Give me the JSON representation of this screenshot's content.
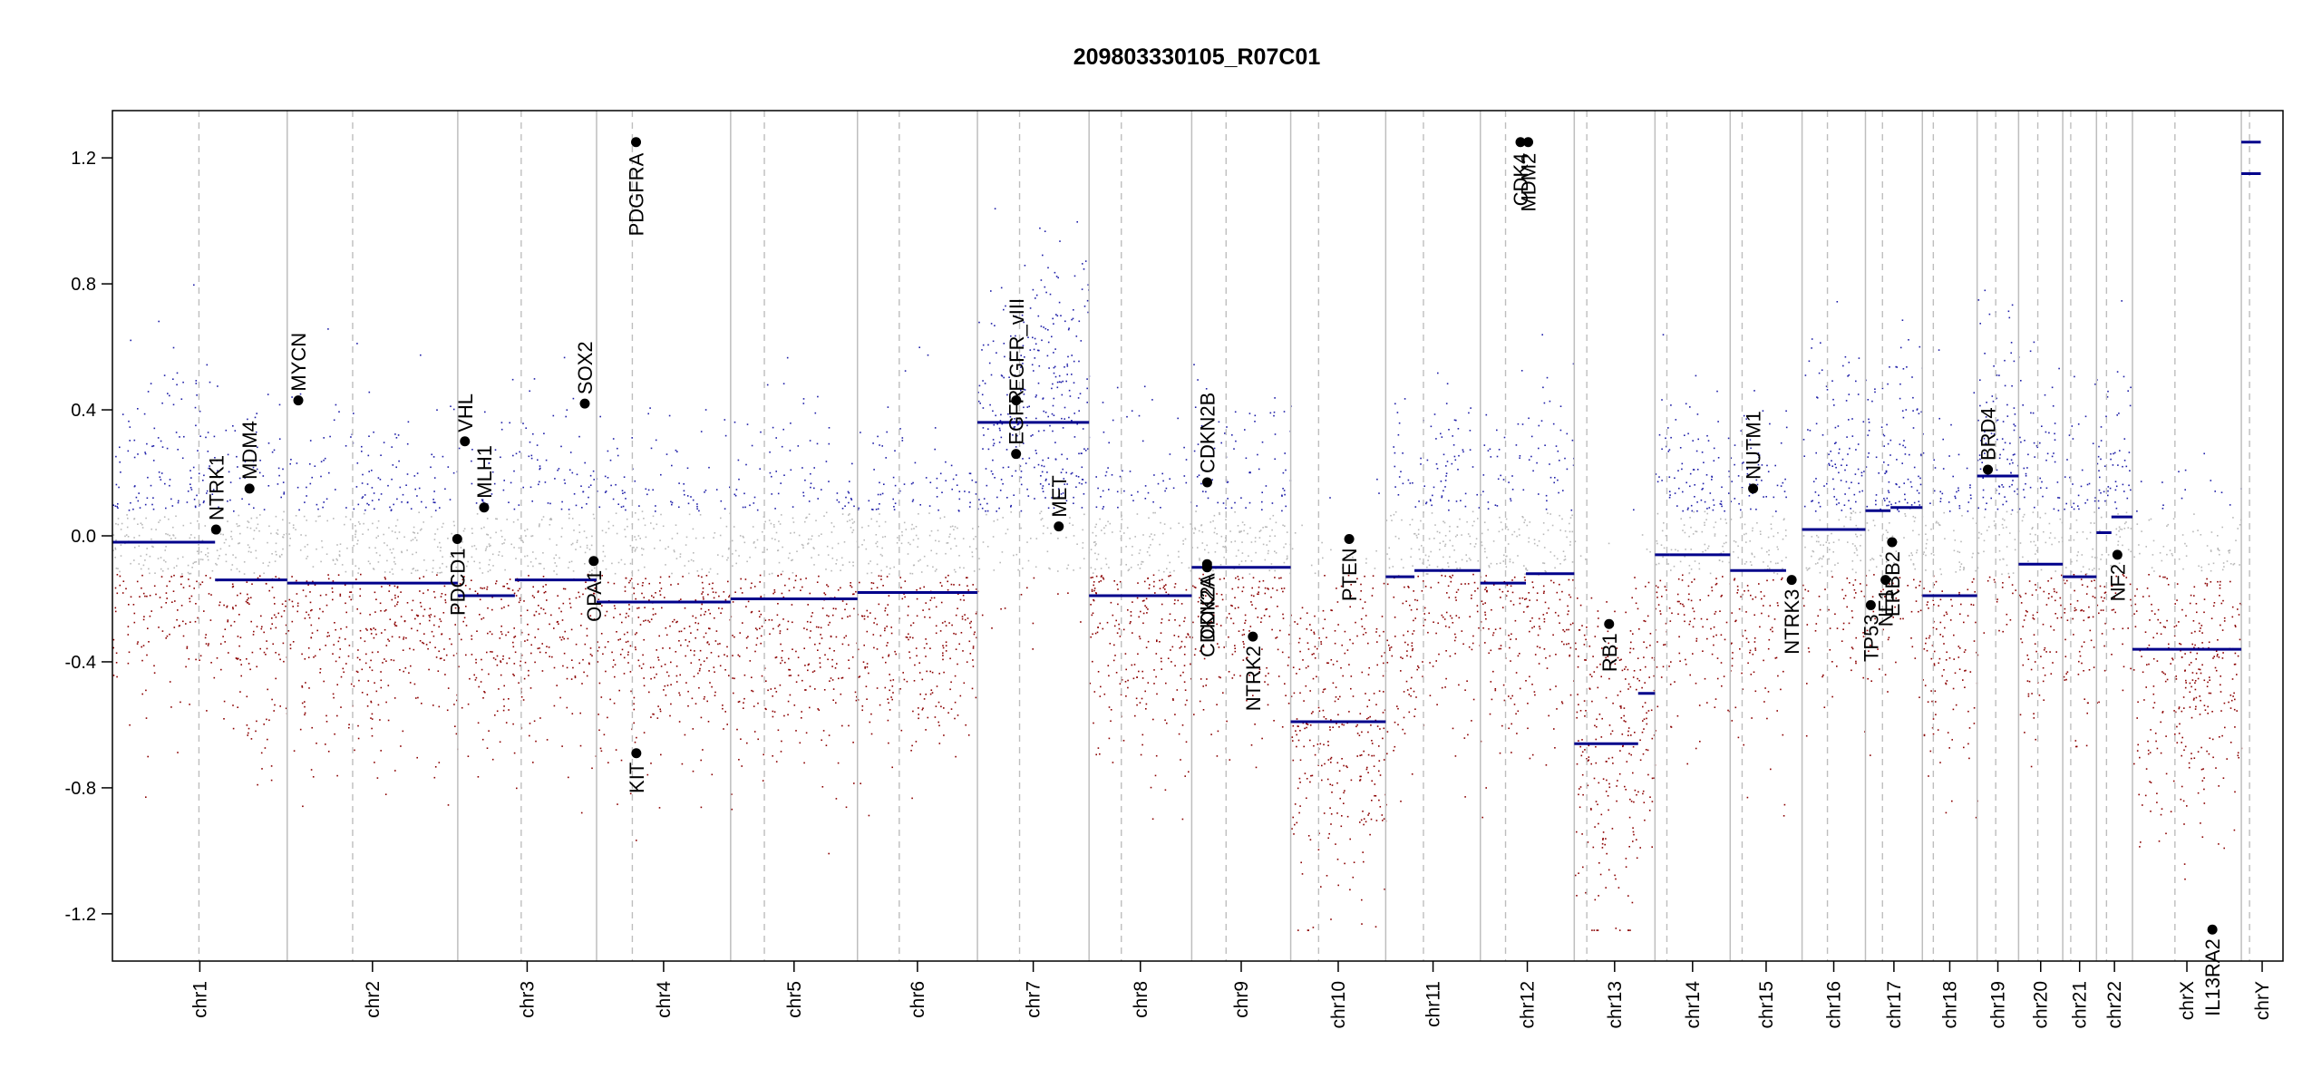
{
  "chart_data": {
    "type": "scatter",
    "title": "209803330105_R07C01",
    "xlabel": "",
    "ylabel": "",
    "ylim": [
      -1.35,
      1.35
    ],
    "yticks": [
      -1.2,
      -0.8,
      -0.4,
      0.0,
      0.4,
      0.8,
      1.2
    ],
    "ytick_labels": [
      "-1.2",
      "-0.8",
      "-0.4",
      "0.0",
      "0.4",
      "0.8",
      "1.2"
    ],
    "grid": false,
    "chromosomes": [
      {
        "name": "chr1",
        "label": "chr1",
        "start": 0,
        "end": 249.3,
        "centromere": 123.4
      },
      {
        "name": "chr2",
        "label": "chr2",
        "start": 249.3,
        "end": 492.5,
        "centromere": 342.6
      },
      {
        "name": "chr3",
        "label": "chr3",
        "start": 492.5,
        "end": 690.5,
        "centromere": 583.0
      },
      {
        "name": "chr4",
        "label": "chr4",
        "start": 690.5,
        "end": 881.7,
        "centromere": 741.5
      },
      {
        "name": "chr5",
        "label": "chr5",
        "start": 881.7,
        "end": 1062.6,
        "centromere": 929.8
      },
      {
        "name": "chr6",
        "label": "chr6",
        "start": 1062.6,
        "end": 1233.7,
        "centromere": 1122.2
      },
      {
        "name": "chr7",
        "label": "chr7",
        "start": 1233.7,
        "end": 1392.9,
        "centromere": 1293.8
      },
      {
        "name": "chr8",
        "label": "chr8",
        "start": 1392.9,
        "end": 1539.3,
        "centromere": 1438.9
      },
      {
        "name": "chr9",
        "label": "chr9",
        "start": 1539.3,
        "end": 1680.5,
        "centromere": 1588.3
      },
      {
        "name": "chr10",
        "label": "chr10",
        "start": 1680.5,
        "end": 1816.0,
        "centromere": 1720.3
      },
      {
        "name": "chr11",
        "label": "chr11",
        "start": 1816.0,
        "end": 1951.0,
        "centromere": 1869.8
      },
      {
        "name": "chr12",
        "label": "chr12",
        "start": 1951.0,
        "end": 2084.9,
        "centromere": 1986.9
      },
      {
        "name": "chr13",
        "label": "chr13",
        "start": 2084.9,
        "end": 2200.0,
        "centromere": 2102.8
      },
      {
        "name": "chr14",
        "label": "chr14",
        "start": 2200.0,
        "end": 2307.3,
        "centromere": 2217.0
      },
      {
        "name": "chr15",
        "label": "chr15",
        "start": 2307.3,
        "end": 2409.8,
        "centromere": 2324.3
      },
      {
        "name": "chr16",
        "label": "chr16",
        "start": 2409.8,
        "end": 2500.2,
        "centromere": 2446.0
      },
      {
        "name": "chr17",
        "label": "chr17",
        "start": 2500.2,
        "end": 2581.4,
        "centromere": 2524.5
      },
      {
        "name": "chr18",
        "label": "chr18",
        "start": 2581.4,
        "end": 2659.5,
        "centromere": 2597.0
      },
      {
        "name": "chr19",
        "label": "chr19",
        "start": 2659.5,
        "end": 2718.6,
        "centromere": 2686.0
      },
      {
        "name": "chr20",
        "label": "chr20",
        "start": 2718.6,
        "end": 2781.6,
        "centromere": 2746.0
      },
      {
        "name": "chr21",
        "label": "chr21",
        "start": 2781.6,
        "end": 2829.7,
        "centromere": 2793.0
      },
      {
        "name": "chr22",
        "label": "chr22",
        "start": 2829.7,
        "end": 2881.0,
        "centromere": 2844.0
      },
      {
        "name": "chrX",
        "label": "chrX",
        "start": 2881.0,
        "end": 3036.3,
        "centromere": 2941.6
      },
      {
        "name": "chrY",
        "label": "chrY",
        "start": 3036.3,
        "end": 3095.7,
        "centromere": 3048.0
      }
    ],
    "segments": [
      {
        "chr": "chr1",
        "start": 0,
        "end": 146.4,
        "value": -0.02
      },
      {
        "chr": "chr1",
        "start": 146.4,
        "end": 249.3,
        "value": -0.14
      },
      {
        "chr": "chr2",
        "start": 249.3,
        "end": 492.5,
        "value": -0.15
      },
      {
        "chr": "chr3",
        "start": 492.5,
        "end": 574.0,
        "value": -0.19
      },
      {
        "chr": "chr3",
        "start": 574.0,
        "end": 690.5,
        "value": -0.14
      },
      {
        "chr": "chr4",
        "start": 690.5,
        "end": 881.7,
        "value": -0.21
      },
      {
        "chr": "chr5",
        "start": 881.7,
        "end": 1062.6,
        "value": -0.2
      },
      {
        "chr": "chr6",
        "start": 1062.6,
        "end": 1233.7,
        "value": -0.18
      },
      {
        "chr": "chr7",
        "start": 1233.7,
        "end": 1392.9,
        "value": 0.36
      },
      {
        "chr": "chr8",
        "start": 1392.9,
        "end": 1539.3,
        "value": -0.19
      },
      {
        "chr": "chr9",
        "start": 1539.3,
        "end": 1680.5,
        "value": -0.1
      },
      {
        "chr": "chr10",
        "start": 1680.5,
        "end": 1816.0,
        "value": -0.59
      },
      {
        "chr": "chr11",
        "start": 1816.0,
        "end": 1857.0,
        "value": -0.13
      },
      {
        "chr": "chr11",
        "start": 1857.0,
        "end": 1951.0,
        "value": -0.11
      },
      {
        "chr": "chr12",
        "start": 1951.0,
        "end": 2016.0,
        "value": -0.15
      },
      {
        "chr": "chr12",
        "start": 2016.0,
        "end": 2084.9,
        "value": -0.12
      },
      {
        "chr": "chr13",
        "start": 2084.9,
        "end": 2176.0,
        "value": -0.66
      },
      {
        "chr": "chr13",
        "start": 2176.0,
        "end": 2200.0,
        "value": -0.5
      },
      {
        "chr": "chr14",
        "start": 2200.0,
        "end": 2221.0,
        "value": -0.06
      },
      {
        "chr": "chr14",
        "start": 2221.0,
        "end": 2307.3,
        "value": -0.06
      },
      {
        "chr": "chr15",
        "start": 2307.3,
        "end": 2387.0,
        "value": -0.11
      },
      {
        "chr": "chr16",
        "start": 2409.8,
        "end": 2500.2,
        "value": 0.02
      },
      {
        "chr": "chr17",
        "start": 2500.2,
        "end": 2536.0,
        "value": 0.08
      },
      {
        "chr": "chr17",
        "start": 2536.0,
        "end": 2581.4,
        "value": 0.09
      },
      {
        "chr": "chr18",
        "start": 2581.4,
        "end": 2659.5,
        "value": -0.19
      },
      {
        "chr": "chr19",
        "start": 2659.5,
        "end": 2718.6,
        "value": 0.19
      },
      {
        "chr": "chr20",
        "start": 2718.6,
        "end": 2781.6,
        "value": -0.09
      },
      {
        "chr": "chr21",
        "start": 2781.6,
        "end": 2829.7,
        "value": -0.13
      },
      {
        "chr": "chr22",
        "start": 2829.7,
        "end": 2851.0,
        "value": 0.01
      },
      {
        "chr": "chr22",
        "start": 2851.0,
        "end": 2881.0,
        "value": 0.06
      },
      {
        "chr": "chrX",
        "start": 2881.0,
        "end": 3036.3,
        "value": -0.36
      },
      {
        "chr": "chrY",
        "start": 3036.3,
        "end": 3064.0,
        "value": 1.25
      },
      {
        "chr": "chrY",
        "start": 3036.3,
        "end": 3064.0,
        "value": 1.15
      }
    ],
    "genes": [
      {
        "name": "NTRK1",
        "pos": 147.8,
        "value": 0.02
      },
      {
        "name": "MDM4",
        "pos": 195.5,
        "value": 0.15
      },
      {
        "name": "MYCN",
        "pos": 265.1,
        "value": 0.43
      },
      {
        "name": "PDCD1",
        "pos": 491.8,
        "value": -0.01
      },
      {
        "name": "VHL",
        "pos": 502.7,
        "value": 0.3
      },
      {
        "name": "MLH1",
        "pos": 530.1,
        "value": 0.09
      },
      {
        "name": "SOX2",
        "pos": 673.7,
        "value": 0.42
      },
      {
        "name": "OPA1",
        "pos": 686.4,
        "value": -0.08
      },
      {
        "name": "PDGFRA",
        "pos": 746.8,
        "value": 1.25
      },
      {
        "name": "KIT",
        "pos": 747.2,
        "value": -0.69
      },
      {
        "name": "EGFR",
        "pos": 1288.8,
        "value": 0.26
      },
      {
        "name": "EGFR_vIII",
        "pos": 1289.0,
        "value": 0.43
      },
      {
        "name": "MET",
        "pos": 1349.7,
        "value": 0.03
      },
      {
        "name": "CDK2A",
        "pos": 1561.2,
        "value": -0.09
      },
      {
        "name": "CDKN2A",
        "pos": 1561.3,
        "value": -0.1
      },
      {
        "name": "CDKN2B",
        "pos": 1561.4,
        "value": 0.17
      },
      {
        "name": "NTRK2",
        "pos": 1626.5,
        "value": -0.32
      },
      {
        "name": "PTEN",
        "pos": 1763.9,
        "value": -0.01
      },
      {
        "name": "CDK4",
        "pos": 2008.2,
        "value": 1.25
      },
      {
        "name": "MDM2",
        "pos": 2019.2,
        "value": 1.25
      },
      {
        "name": "RB1",
        "pos": 2134.6,
        "value": -0.28
      },
      {
        "name": "NUTM1",
        "pos": 2340.0,
        "value": 0.15
      },
      {
        "name": "NTRK3",
        "pos": 2395.0,
        "value": -0.14
      },
      {
        "name": "TP53",
        "pos": 2507.8,
        "value": -0.22
      },
      {
        "name": "NF1",
        "pos": 2528.8,
        "value": -0.14
      },
      {
        "name": "ERBB2",
        "pos": 2538.2,
        "value": -0.02
      },
      {
        "name": "BRD4",
        "pos": 2674.8,
        "value": 0.21
      },
      {
        "name": "NF2",
        "pos": 2859.5,
        "value": -0.06
      },
      {
        "name": "IL13RA2",
        "pos": 2995.0,
        "value": -1.25
      }
    ]
  },
  "colors": {
    "high": "#1f1fa8",
    "neutral": "#b8b8b8",
    "low": "#8b0000",
    "segment": "#00008b",
    "boundary": "#bebebe",
    "gene_marker": "#000000"
  }
}
